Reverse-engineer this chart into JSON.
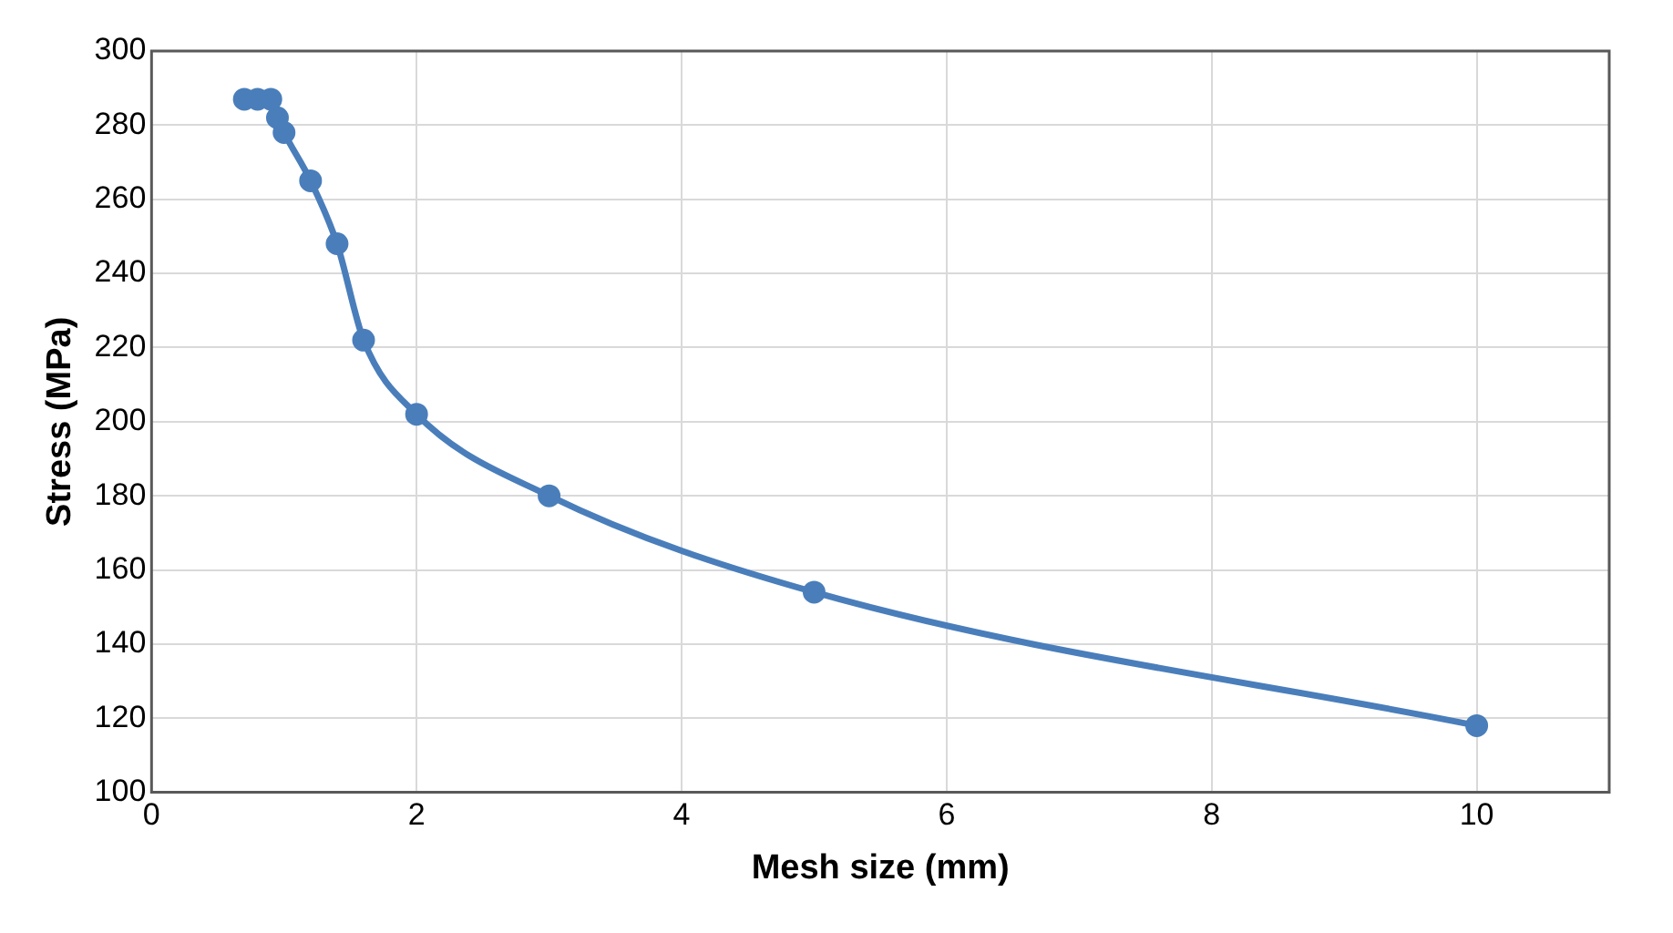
{
  "chart_data": {
    "type": "line",
    "xlabel": "Mesh size (mm)",
    "ylabel": "Stress (MPa)",
    "x": [
      0.7,
      0.8,
      0.9,
      0.95,
      1,
      1.2,
      1.4,
      1.6,
      2,
      3,
      5,
      10
    ],
    "series": [
      {
        "color": "#4a7ebb",
        "values": [
          287,
          287,
          287,
          282,
          278,
          265,
          248,
          222,
          202,
          180,
          154,
          118
        ]
      }
    ],
    "xlim": [
      0,
      11
    ],
    "xticks": [
      0,
      2,
      4,
      6,
      8,
      10
    ],
    "ylim": [
      100,
      300
    ],
    "yticks": [
      100,
      120,
      140,
      160,
      180,
      200,
      220,
      240,
      260,
      280,
      300
    ],
    "grid": true,
    "legend": false,
    "marker": "circle",
    "line_style": "solid"
  }
}
